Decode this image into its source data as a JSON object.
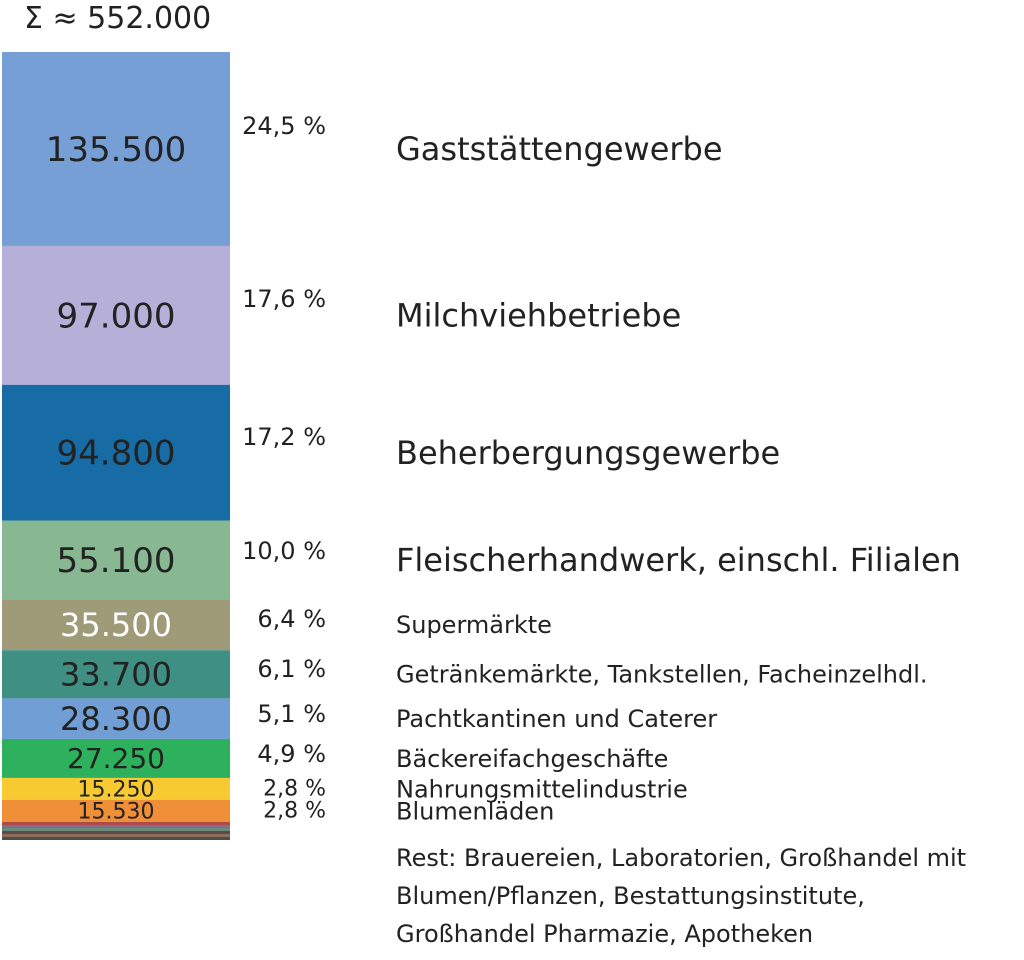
{
  "chart_data": {
    "type": "bar",
    "subtype": "stacked-100-single-column",
    "title": "Σ ≈ 552.000",
    "total": 552000,
    "categories": [
      "Gaststättengewerbe",
      "Milchviehbetriebe",
      "Beherbergungsgewerbe",
      "Fleischerhandwerk, einschl. Filialen",
      "Supermärkte",
      "Getränkemärkte, Tankstellen, Facheinzelhdl.",
      "Pachtkantinen und Caterer",
      "Bäckereifachgeschäfte",
      "Nahrungsmittelindustrie",
      "Blumenläden"
    ],
    "values": [
      135500,
      97000,
      94800,
      55100,
      35500,
      33700,
      28300,
      27250,
      15250,
      15530
    ],
    "value_labels": [
      "135.500",
      "97.000",
      "94.800",
      "55.100",
      "35.500",
      "33.700",
      "28.300",
      "27.250",
      "15.250",
      "15.530"
    ],
    "percent_labels": [
      "24,5 %",
      "17,6 %",
      "17,2 %",
      "10,0 %",
      "6,4 %",
      "6,1 %",
      "5,1 %",
      "4,9 %",
      "2,8 %",
      "2,8 %"
    ],
    "colors": [
      "#759fd5",
      "#b6afd8",
      "#176ca6",
      "#88b892",
      "#9f9b79",
      "#3f8f83",
      "#729ed6",
      "#2eb15c",
      "#f8ca32",
      "#ef8f37"
    ],
    "value_label_colors": [
      "#222222",
      "#222222",
      "#222222",
      "#222222",
      "#ffffff",
      "#222222",
      "#222222",
      "#222222",
      "#222222",
      "#222222"
    ],
    "rest": {
      "lines": [
        "Rest: Brauereien, Laboratorien, Großhandel mit",
        "Blumen/Pflanzen, Bestattungsinstitute,",
        "Großhandel Pharmazie, Apotheken"
      ],
      "stripe_colors": [
        "#b04a4a",
        "#7f6f88",
        "#6a8a7a",
        "#5b4b4b",
        "#8d6d5a",
        "#4d4d4d"
      ]
    },
    "legend": "none",
    "grid": false
  }
}
